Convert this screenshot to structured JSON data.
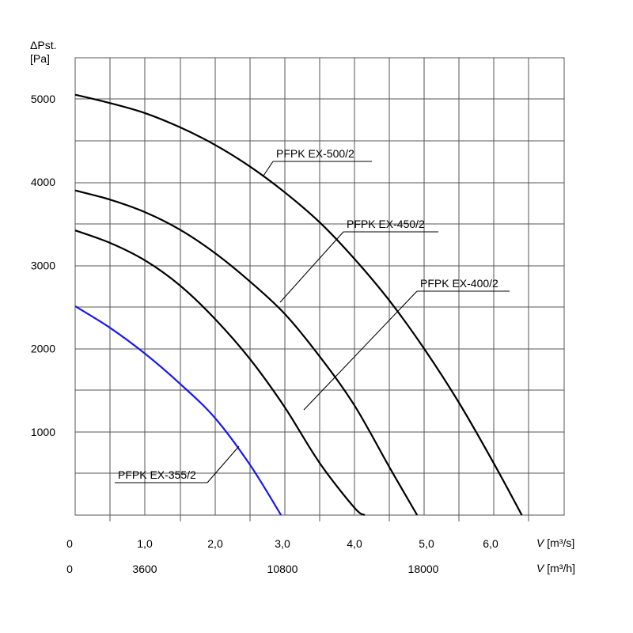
{
  "chart_data": {
    "type": "line",
    "y_axis_label_symbol": "ΔPst.",
    "y_axis_label_unit": "[Pa]",
    "x_axis_label_ms": "V [m³/s]",
    "x_axis_label_mh": "V [m³/h]",
    "x_axis_symbol": "V",
    "x_axis_unit_ms": "[m³/s]",
    "x_axis_unit_mh": "[m³/h]",
    "ylim": [
      0,
      5500
    ],
    "xlim": [
      0,
      7.0
    ],
    "grid": true,
    "y_ticks": [
      {
        "value": 1000,
        "label": "1000"
      },
      {
        "value": 2000,
        "label": "2000"
      },
      {
        "value": 3000,
        "label": "3000"
      },
      {
        "value": 4000,
        "label": "4000"
      },
      {
        "value": 5000,
        "label": "5000"
      }
    ],
    "x_ticks_ms": [
      {
        "value": 0,
        "label": "0"
      },
      {
        "value": 1.0,
        "label": "1,0"
      },
      {
        "value": 2.0,
        "label": "2,0"
      },
      {
        "value": 3.0,
        "label": "3,0"
      },
      {
        "value": 4.0,
        "label": "4,0"
      },
      {
        "value": 5.0,
        "label": "5,0"
      },
      {
        "value": 6.0,
        "label": "6,0"
      }
    ],
    "x_ticks_mh": [
      {
        "value": 0,
        "label": "0"
      },
      {
        "value": 1.0,
        "label": "3600"
      },
      {
        "value": 3.0,
        "label": "10800"
      },
      {
        "value": 5.0,
        "label": "18000"
      }
    ],
    "series": [
      {
        "name": "PFPK EX-500/2",
        "color": "#000000",
        "x": [
          0.0,
          0.5,
          1.0,
          1.5,
          2.0,
          2.5,
          3.0,
          3.5,
          4.0,
          4.5,
          5.0,
          5.5,
          6.0,
          6.4
        ],
        "y": [
          5050,
          4950,
          4830,
          4660,
          4450,
          4190,
          3880,
          3520,
          3080,
          2580,
          2000,
          1350,
          620,
          0
        ]
      },
      {
        "name": "PFPK EX-450/2",
        "color": "#000000",
        "x": [
          0.0,
          0.5,
          1.0,
          1.5,
          2.0,
          2.5,
          3.0,
          3.5,
          4.0,
          4.5,
          4.9
        ],
        "y": [
          3900,
          3790,
          3640,
          3430,
          3150,
          2810,
          2420,
          1910,
          1320,
          580,
          0
        ]
      },
      {
        "name": "PFPK EX-400/2",
        "color": "#000000",
        "x": [
          0.0,
          0.5,
          1.0,
          1.5,
          2.0,
          2.5,
          3.0,
          3.5,
          4.0,
          4.15
        ],
        "y": [
          3420,
          3270,
          3060,
          2760,
          2360,
          1880,
          1300,
          630,
          90,
          0
        ]
      },
      {
        "name": "PFPK EX-355/2",
        "color": "#1a1ae6",
        "x": [
          0.0,
          0.5,
          1.0,
          1.5,
          2.0,
          2.5,
          2.95
        ],
        "y": [
          2510,
          2250,
          1940,
          1580,
          1170,
          610,
          0
        ]
      }
    ],
    "annotations": [
      {
        "series": "PFPK EX-500/2",
        "text": "PFPK EX-500/2"
      },
      {
        "series": "PFPK EX-450/2",
        "text": "PFPK EX-450/2"
      },
      {
        "series": "PFPK EX-400/2",
        "text": "PFPK EX-400/2"
      },
      {
        "series": "PFPK EX-355/2",
        "text": "PFPK EX-355/2"
      }
    ]
  }
}
